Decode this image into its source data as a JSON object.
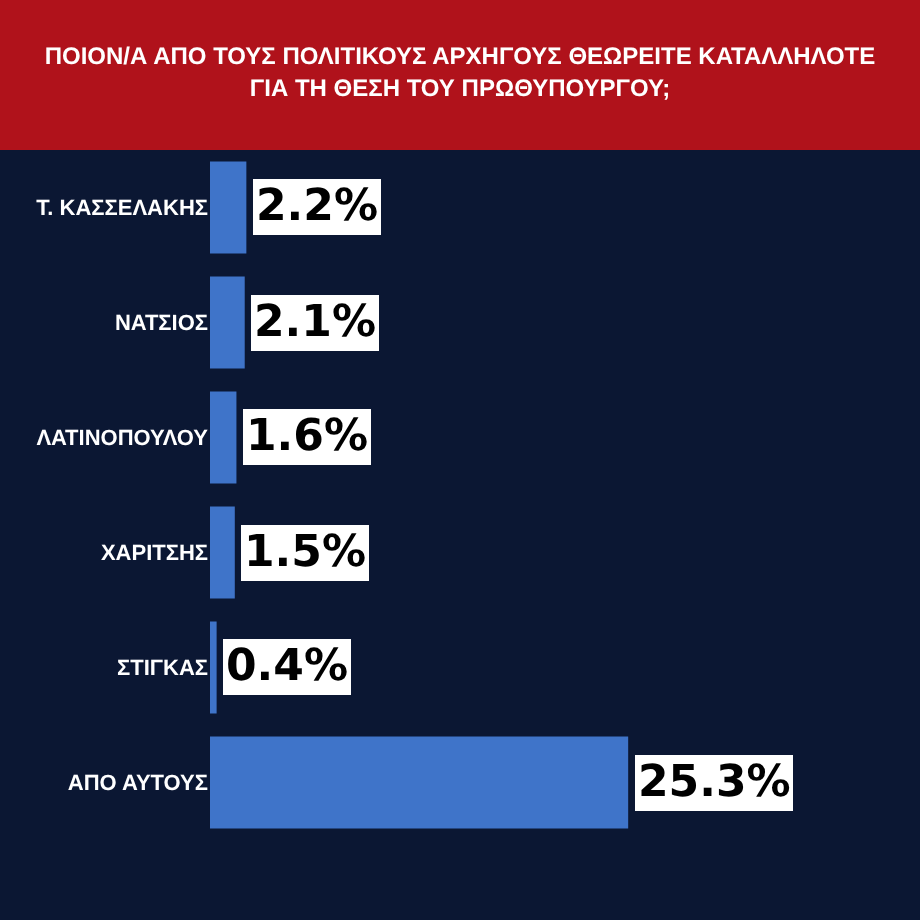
{
  "chart_data": {
    "type": "bar",
    "orientation": "horizontal",
    "title": "ΠΟΙΟΝ/Α ΑΠΟ ΤΟΥΣ ΠΟΛΙΤΙΚΟΥΣ ΑΡΧΗΓΟΥΣ ΘΕΩΡΕΙΤΕ ΚΑΤΑΛΛΗΛΟΤΕ\nΓΙΑ ΤΗ ΘΕΣΗ ΤΟΥ ΠΡΩΘΥΠΟΥΡΓΟΥ;",
    "categories": [
      "Τ. ΚΑΣΣΕΛΑΚΗΣ",
      "ΝΑΤΣΙΟΣ",
      "ΛΑΤΙΝΟΠΟΥΛΟΥ",
      "ΧΑΡΙΤΣΗΣ",
      "ΣΤΙΓΚΑΣ",
      "ΑΠΟ ΑΥΤΟΥΣ"
    ],
    "values": [
      2.2,
      2.1,
      1.6,
      1.5,
      0.4,
      25.3
    ],
    "value_labels": [
      "2.2%",
      "2.1%",
      "1.6%",
      "1.5%",
      "0.4%",
      "25.3%"
    ],
    "color": "#3f74c9"
  }
}
